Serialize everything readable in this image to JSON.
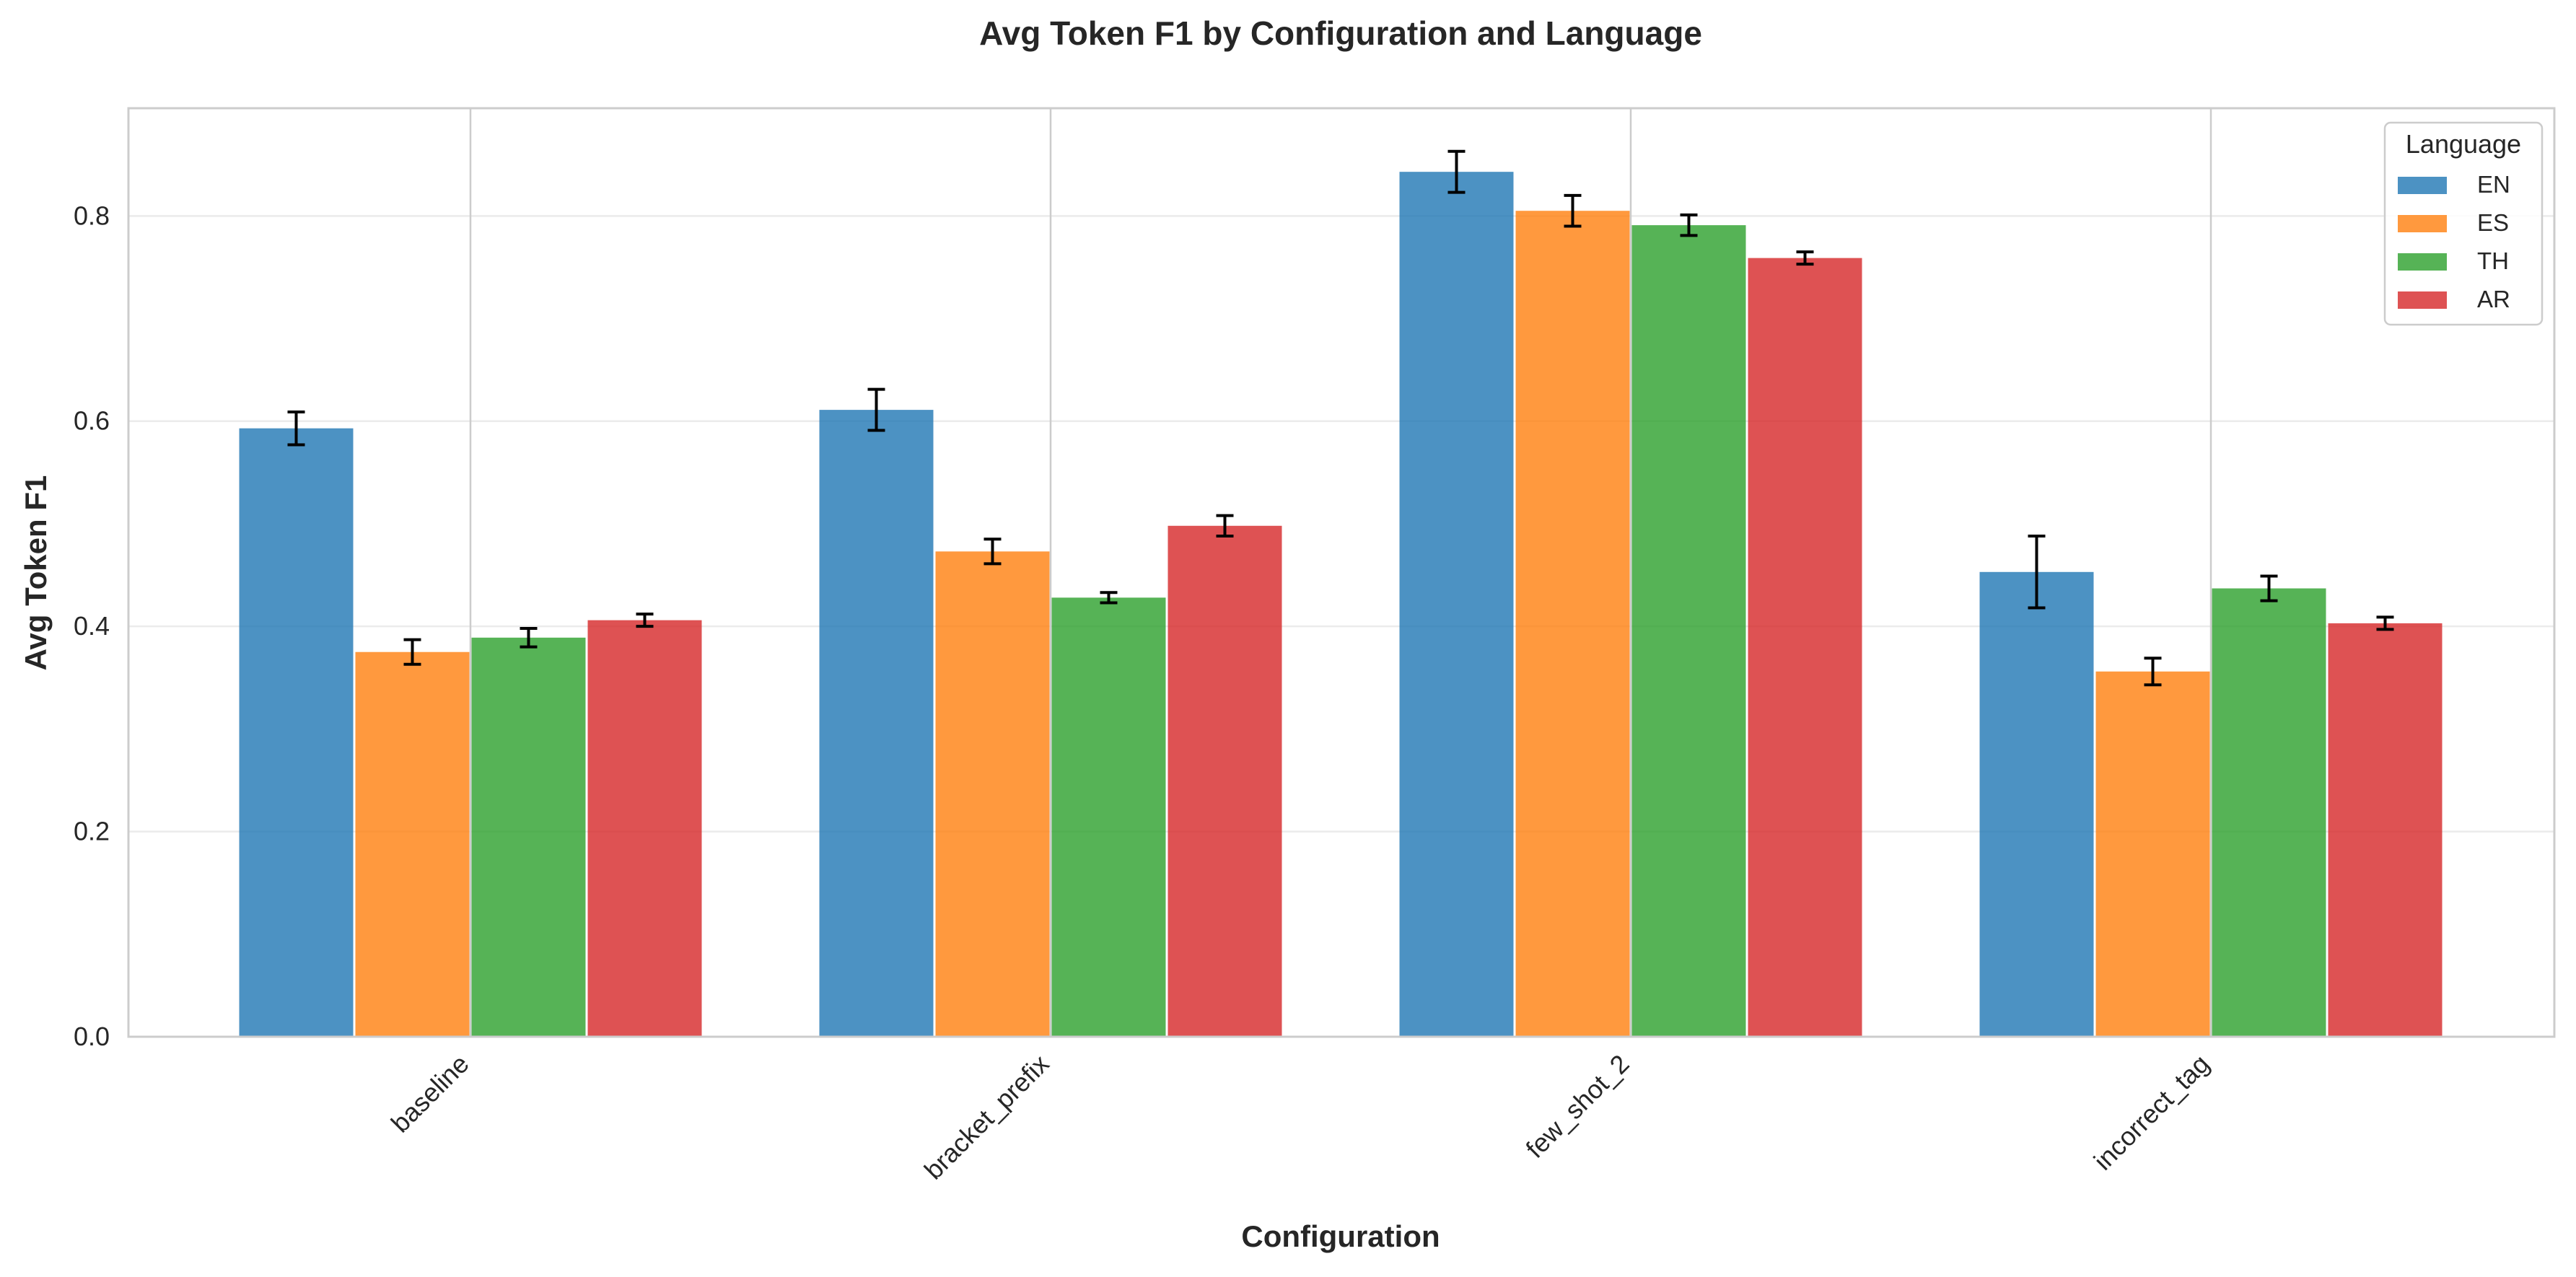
{
  "chart_data": {
    "type": "bar",
    "title": "Avg Token F1 by Configuration and Language",
    "xlabel": "Configuration",
    "ylabel": "Avg Token F1",
    "categories": [
      "baseline",
      "bracket_prefix",
      "few_shot_2",
      "incorrect_tag"
    ],
    "ylim": [
      0,
      0.905
    ],
    "yticks": [
      0.0,
      0.2,
      0.4,
      0.6,
      0.8
    ],
    "grid": true,
    "legend": {
      "title": "Language",
      "position": "top-right"
    },
    "series": [
      {
        "name": "EN",
        "color": "#1f77b4",
        "values": [
          0.593,
          0.611,
          0.843,
          0.453
        ],
        "errors": [
          0.016,
          0.02,
          0.02,
          0.035
        ]
      },
      {
        "name": "ES",
        "color": "#ff7f0e",
        "values": [
          0.375,
          0.473,
          0.805,
          0.356
        ],
        "errors": [
          0.012,
          0.012,
          0.015,
          0.013
        ]
      },
      {
        "name": "TH",
        "color": "#2ca02c",
        "values": [
          0.389,
          0.428,
          0.791,
          0.437
        ],
        "errors": [
          0.009,
          0.005,
          0.01,
          0.012
        ]
      },
      {
        "name": "AR",
        "color": "#d62728",
        "values": [
          0.406,
          0.498,
          0.759,
          0.403
        ],
        "errors": [
          0.006,
          0.01,
          0.006,
          0.006
        ]
      }
    ]
  }
}
